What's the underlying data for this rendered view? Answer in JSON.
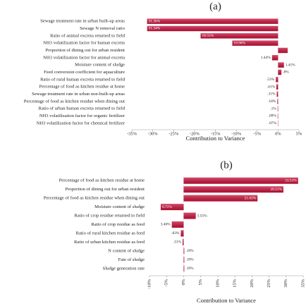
{
  "chart_data": [
    {
      "type": "bar",
      "orientation": "horizontal",
      "title": "(a)",
      "xlabel": "Contribution to Variance",
      "categories": [
        "Sewage treatment rate in urban built-up areas",
        "Sewage N removal ratio",
        "Ratio of animal excreta returned to field",
        "NH3 volatilization factor for human excreta",
        "Proportion of dining out for urban resident",
        "NH3 volatilization factor for animal excreta",
        "Moisture content of sludge",
        "Feed conversion coefficient for aquaculture",
        "Ratio of rural human excreta returned to field",
        "Percentage of food as kitchen residue at home",
        "Sewage treatment rate in urban non-built-up areas",
        "Percentage of food as kitchen residue when dining out",
        "Ratio of urban human excreta returned to field",
        "NH3 volatilization factor for organic fertilizer",
        "NH3 volatilization factor for chemical fertilizer"
      ],
      "values": [
        -31.36,
        -31.34,
        -18.55,
        -10.96,
        2.3,
        -1.44,
        1.41,
        0.8,
        -0.53,
        -0.41,
        -0.31,
        -0.18,
        -0.1,
        -0.09,
        -0.07
      ],
      "value_labels": [
        "31.36%",
        "31.34%",
        "18.55%",
        "10.96%",
        null,
        "1.44%",
        "1.41%",
        ".8%",
        ".53%",
        ".41%",
        ".31%",
        ".18%",
        ".1%",
        ".09%",
        ".07%"
      ],
      "color": "#c8143c",
      "xlim": [
        -35,
        5
      ],
      "xticks": [
        {
          "value": -35,
          "label": "-35%"
        },
        {
          "value": -30,
          "label": "-30%"
        },
        {
          "value": -25,
          "label": "-25%"
        },
        {
          "value": -20,
          "label": "-20%"
        },
        {
          "value": -15,
          "label": "-15%"
        },
        {
          "value": -10,
          "label": "-10%"
        },
        {
          "value": -5,
          "label": "-5%"
        },
        {
          "value": 0,
          "label": "0%"
        },
        {
          "value": 5,
          "label": "5%"
        }
      ]
    },
    {
      "type": "bar",
      "orientation": "horizontal",
      "title": "(b)",
      "xlabel": "Contribution to Variance",
      "categories": [
        "Percentage of food as kitchen residue at home",
        "Proportion of dining out for urban resident",
        "Percentage of food as kitchen residue when dining out",
        "Moisture content of sludge",
        "Ratio of crop residue returned to field",
        "Ratio of crop residue as feed",
        "Ratio of rural kitchen residue as feed",
        "Ratio of urban kitchen residue as feed",
        "N content of sludge",
        "Fate of sludge",
        "Sludge generation rate"
      ],
      "values": [
        33.51,
        29.21,
        21.63,
        -6.71,
        3.55,
        -3.46,
        -0.83,
        -0.31,
        0.19,
        0.19,
        0.19
      ],
      "value_labels": [
        "33.51%",
        "29.21%",
        "21.63%",
        "6.71%",
        "3.55%",
        "3.46%",
        ".83%",
        ".31%",
        ".19%",
        ".19%",
        ".19%"
      ],
      "color": "#c8143c",
      "xlim": [
        -10,
        35
      ],
      "xticks": [
        {
          "value": -10,
          "label": "-10%"
        },
        {
          "value": -5,
          "label": "-5%"
        },
        {
          "value": 0,
          "label": "0%"
        },
        {
          "value": 5,
          "label": "5%"
        },
        {
          "value": 10,
          "label": "10%"
        },
        {
          "value": 15,
          "label": "15%"
        },
        {
          "value": 20,
          "label": "20%"
        },
        {
          "value": 25,
          "label": "25%"
        },
        {
          "value": 30,
          "label": "30%"
        },
        {
          "value": 35,
          "label": "35%"
        }
      ]
    }
  ]
}
